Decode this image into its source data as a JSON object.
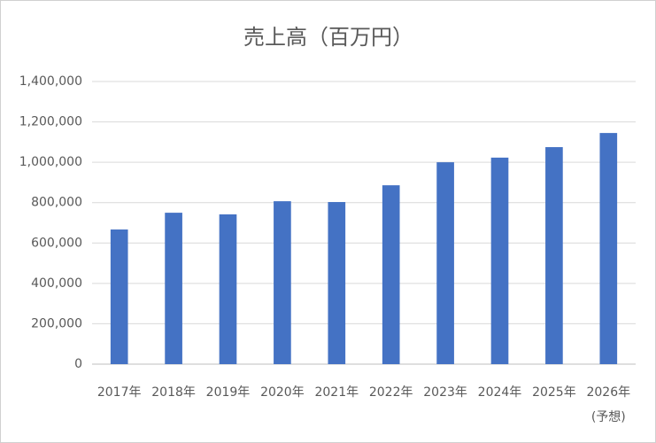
{
  "chart_data": {
    "type": "bar",
    "title": "売上高（百万円）",
    "categories": [
      "2017年",
      "2018年",
      "2019年",
      "2020年",
      "2021年",
      "2022年",
      "2023年",
      "2024年",
      "2025年",
      "2026年\n(予想)"
    ],
    "values": [
      667000,
      750000,
      742000,
      807000,
      803000,
      886000,
      1000000,
      1023000,
      1075000,
      1145000
    ],
    "color": "#4472c4",
    "ylim": [
      0,
      1400000
    ],
    "yticks": [
      0,
      {
        "value": 200000,
        "label": "200,000"
      },
      {
        "value": 400000,
        "label": "400,000"
      },
      {
        "value": 600000,
        "label": "600,000"
      },
      {
        "value": 800000,
        "label": "800,000"
      },
      {
        "value": 1000000,
        "label": "1,000,000"
      },
      {
        "value": 1200000,
        "label": "1,200,000"
      },
      {
        "value": 1400000,
        "label": "1,400,000"
      }
    ],
    "grid": true
  }
}
